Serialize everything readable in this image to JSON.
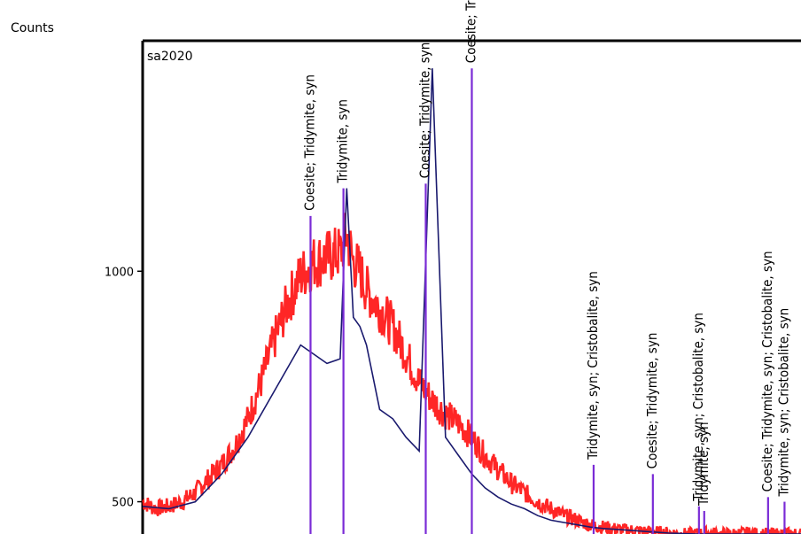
{
  "chart_data": {
    "type": "line",
    "ylabel": "Counts",
    "sample_label": "sa2020",
    "yticks": [
      500,
      1000
    ],
    "ylim": [
      430,
      1500
    ],
    "xlim": [
      0,
      100
    ],
    "grid": false,
    "colors": {
      "observed": "#ff1a1a",
      "fit": "#1a1a6e",
      "phase_peaks": "#7a2bd6"
    },
    "series": [
      {
        "role": "observed",
        "x": [
          0,
          2,
          4,
          6,
          8,
          10,
          12,
          14,
          16,
          18,
          20,
          22,
          24,
          26,
          28,
          30,
          31,
          32,
          33,
          34,
          36,
          38,
          40,
          42,
          43,
          44,
          46,
          48,
          50,
          52,
          54,
          56,
          58,
          60,
          62,
          64,
          66,
          68,
          70,
          72,
          74,
          76,
          78,
          80,
          82,
          84,
          86,
          88,
          90,
          92,
          94,
          96,
          98,
          100
        ],
        "y": [
          500,
          485,
          490,
          500,
          520,
          550,
          580,
          620,
          680,
          760,
          850,
          930,
          990,
          1020,
          1030,
          1040,
          1080,
          1020,
          1000,
          960,
          920,
          880,
          820,
          760,
          740,
          720,
          690,
          670,
          640,
          600,
          570,
          540,
          520,
          500,
          485,
          470,
          460,
          450,
          445,
          440,
          438,
          436,
          434,
          432,
          430,
          430,
          432,
          430,
          430,
          432,
          430,
          430,
          430,
          430
        ]
      },
      {
        "role": "fit",
        "x": [
          0,
          4,
          8,
          12,
          16,
          20,
          24,
          26,
          28,
          30,
          31,
          32,
          33,
          34,
          36,
          38,
          40,
          42,
          44,
          46,
          48,
          50,
          52,
          54,
          56,
          58,
          60,
          62,
          64,
          66,
          68,
          70,
          72,
          74,
          76,
          78,
          80,
          84,
          88,
          92,
          96,
          100
        ],
        "y": [
          490,
          485,
          500,
          560,
          640,
          740,
          840,
          820,
          800,
          810,
          1180,
          900,
          880,
          840,
          700,
          680,
          640,
          610,
          1440,
          640,
          600,
          560,
          530,
          510,
          495,
          485,
          470,
          460,
          455,
          450,
          445,
          442,
          440,
          438,
          436,
          434,
          432,
          430,
          430,
          430,
          430,
          430
        ]
      }
    ],
    "peaks": [
      {
        "x": 25.5,
        "y": 1120,
        "label": "Coesite; Tridymite, syn"
      },
      {
        "x": 30.5,
        "y": 1180,
        "label": "Tridymite, syn"
      },
      {
        "x": 43.0,
        "y": 1190,
        "label": "Coesite; Tridymite, syn"
      },
      {
        "x": 50.0,
        "y": 1440,
        "label": "Coesite; Tridymite, syn"
      },
      {
        "x": 68.5,
        "y": 580,
        "label": "Tridymite, syn; Cristobalite, syn"
      },
      {
        "x": 77.5,
        "y": 560,
        "label": "Coesite; Tridymite, syn"
      },
      {
        "x": 84.5,
        "y": 490,
        "label": "Tridymite, syn; Cristobalite, syn"
      },
      {
        "x": 85.3,
        "y": 480,
        "label": "Tridymite, syn"
      },
      {
        "x": 95.0,
        "y": 510,
        "label": "Coesite; Tridymite, syn; Cristobalite, syn"
      },
      {
        "x": 97.5,
        "y": 500,
        "label": "Tridymite, syn; Cristobalite, syn"
      }
    ]
  }
}
